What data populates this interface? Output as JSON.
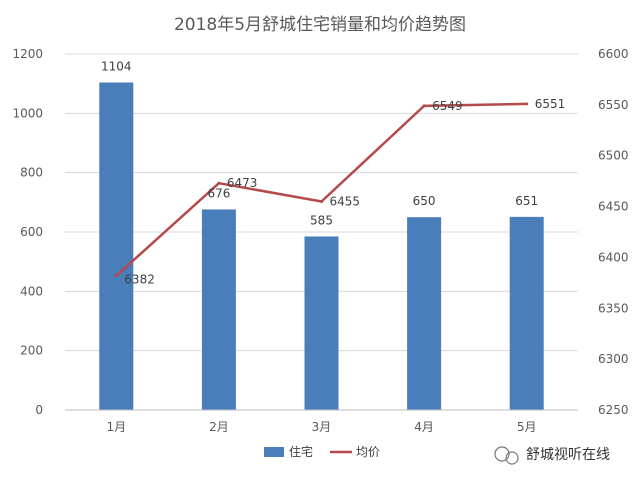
{
  "chart_data": {
    "type": "bar",
    "title": "2018年5月舒城住宅销量和均价趋势图",
    "categories": [
      "1月",
      "2月",
      "3月",
      "4月",
      "5月"
    ],
    "series": [
      {
        "name": "住宅",
        "type": "bar",
        "axis": "left",
        "values": [
          1104,
          676,
          585,
          650,
          651
        ],
        "color": "#4a7ebb"
      },
      {
        "name": "均价",
        "type": "line",
        "axis": "right",
        "values": [
          6382,
          6473,
          6455,
          6549,
          6551
        ],
        "color": "#b54a4a"
      }
    ],
    "y_left": {
      "ylim": [
        0,
        1200
      ],
      "ticks": [
        "0",
        "200",
        "400",
        "600",
        "800",
        "1000",
        "1200"
      ]
    },
    "y_right": {
      "ylim": [
        6250,
        6600
      ],
      "ticks": [
        "6250",
        "6300",
        "6350",
        "6400",
        "6450",
        "6500",
        "6550",
        "6600"
      ]
    },
    "grid": true,
    "legend": "bottom"
  },
  "watermark": {
    "text": "舒城视听在线",
    "icon": "wechat-icon"
  }
}
